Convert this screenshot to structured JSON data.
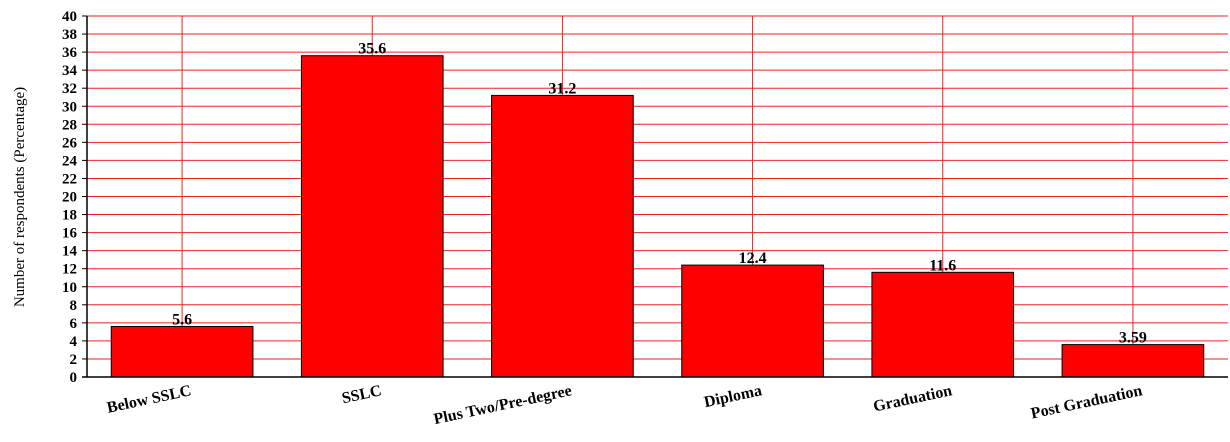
{
  "chart_data": {
    "type": "bar",
    "title": "",
    "xlabel": "",
    "ylabel": "Number of respondents (Percentage)",
    "categories": [
      "Below SSLC",
      "SSLC",
      "Plus Two/Pre-degree",
      "Diploma",
      "Graduation",
      "Post Graduation"
    ],
    "values": [
      5.6,
      35.6,
      31.2,
      12.4,
      11.6,
      3.59
    ],
    "data_labels": [
      "5.6",
      "35.6",
      "31.2",
      "12.4",
      "11.6",
      "3.59"
    ],
    "ylim": [
      0,
      40
    ],
    "y_ticks": [
      "0",
      "2",
      "4",
      "6",
      "8",
      "10",
      "12",
      "14",
      "16",
      "18",
      "20",
      "22",
      "24",
      "26",
      "28",
      "30",
      "32",
      "34",
      "36",
      "38",
      "40"
    ],
    "grid": true,
    "legend": "none",
    "colors": {
      "bar": "#ff0000",
      "bar_stroke": "#000000",
      "grid": "#ee2222",
      "axis": "#000000"
    }
  }
}
